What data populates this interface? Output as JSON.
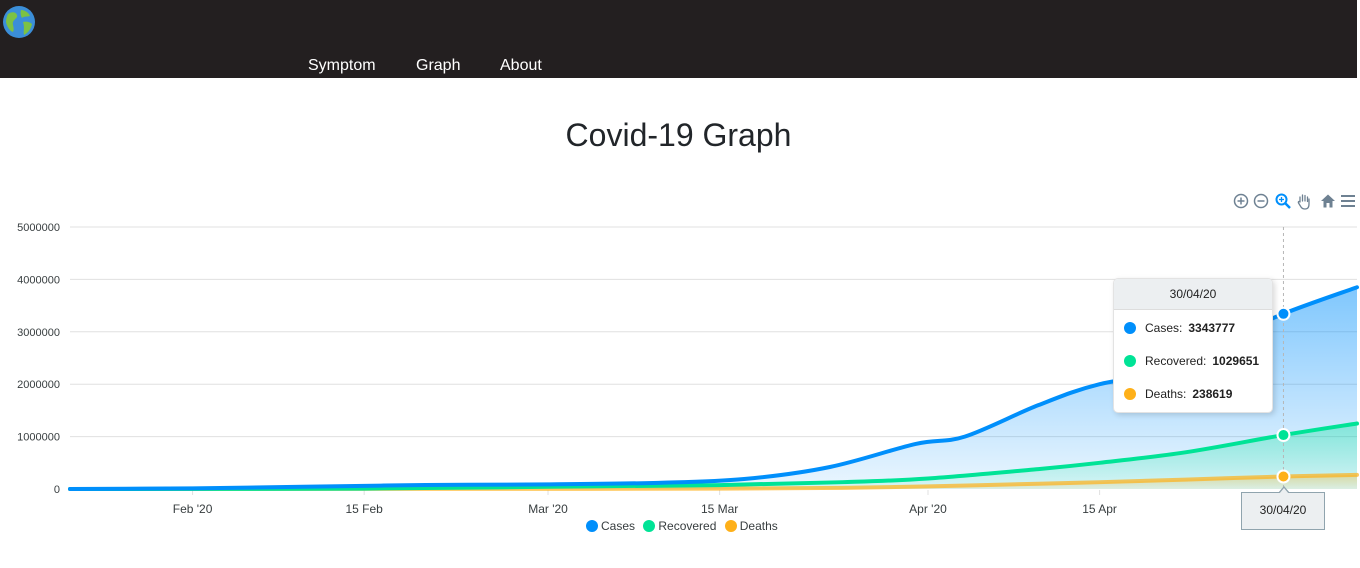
{
  "header": {
    "logo_icon": "globe-icon",
    "nav": [
      {
        "label": "Symptom"
      },
      {
        "label": "Graph"
      },
      {
        "label": "About"
      }
    ]
  },
  "page": {
    "title": "Covid-19 Graph"
  },
  "toolbar": {
    "icons": [
      "zoom-in-icon",
      "zoom-out-icon",
      "selection-zoom-icon",
      "pan-hand-icon",
      "reset-home-icon",
      "menu-icon"
    ]
  },
  "tooltip": {
    "date": "30/04/20",
    "rows": [
      {
        "label": "Cases:",
        "value": "3343777",
        "color": "#008ffb"
      },
      {
        "label": "Recovered:",
        "value": "1029651",
        "color": "#00e396"
      },
      {
        "label": "Deaths:",
        "value": "238619",
        "color": "#feb019"
      }
    ],
    "xaxis_label": "30/04/20"
  },
  "chart_data": {
    "type": "area",
    "x_range": [
      "2020-01-22",
      "2020-05-06"
    ],
    "ylim": [
      0,
      5000000
    ],
    "yticks": [
      "0",
      "1000000",
      "2000000",
      "3000000",
      "4000000",
      "5000000"
    ],
    "xticks": [
      {
        "date": "2020-02-01",
        "label": "Feb '20"
      },
      {
        "date": "2020-02-15",
        "label": "15 Feb"
      },
      {
        "date": "2020-03-01",
        "label": "Mar '20"
      },
      {
        "date": "2020-03-15",
        "label": "15 Mar"
      },
      {
        "date": "2020-04-01",
        "label": "Apr '20"
      },
      {
        "date": "2020-04-15",
        "label": "15 Apr"
      }
    ],
    "grid": true,
    "legend_position": "bottom",
    "series": [
      {
        "name": "Cases",
        "color": "#008ffb",
        "points": [
          [
            "2020-01-22",
            500
          ],
          [
            "2020-02-01",
            12000
          ],
          [
            "2020-02-10",
            42000
          ],
          [
            "2020-02-20",
            76000
          ],
          [
            "2020-03-01",
            88000
          ],
          [
            "2020-03-10",
            118000
          ],
          [
            "2020-03-17",
            190000
          ],
          [
            "2020-03-24",
            420000
          ],
          [
            "2020-03-31",
            860000
          ],
          [
            "2020-04-04",
            1000000
          ],
          [
            "2020-04-10",
            1600000
          ],
          [
            "2020-04-15",
            2000000
          ],
          [
            "2020-04-22",
            2300000
          ],
          [
            "2020-04-26",
            2900000
          ],
          [
            "2020-04-30",
            3343777
          ],
          [
            "2020-05-06",
            3850000
          ]
        ]
      },
      {
        "name": "Recovered",
        "color": "#00e396",
        "points": [
          [
            "2020-01-22",
            0
          ],
          [
            "2020-02-15",
            8000
          ],
          [
            "2020-03-01",
            42000
          ],
          [
            "2020-03-15",
            75000
          ],
          [
            "2020-03-25",
            130000
          ],
          [
            "2020-04-01",
            200000
          ],
          [
            "2020-04-10",
            380000
          ],
          [
            "2020-04-15",
            500000
          ],
          [
            "2020-04-22",
            700000
          ],
          [
            "2020-04-30",
            1029651
          ],
          [
            "2020-05-06",
            1250000
          ]
        ]
      },
      {
        "name": "Deaths",
        "color": "#feb019",
        "points": [
          [
            "2020-01-22",
            0
          ],
          [
            "2020-02-15",
            1500
          ],
          [
            "2020-03-01",
            3000
          ],
          [
            "2020-03-15",
            6000
          ],
          [
            "2020-03-25",
            22000
          ],
          [
            "2020-04-01",
            50000
          ],
          [
            "2020-04-10",
            100000
          ],
          [
            "2020-04-15",
            130000
          ],
          [
            "2020-04-22",
            180000
          ],
          [
            "2020-04-30",
            238619
          ],
          [
            "2020-05-06",
            270000
          ]
        ]
      }
    ]
  }
}
